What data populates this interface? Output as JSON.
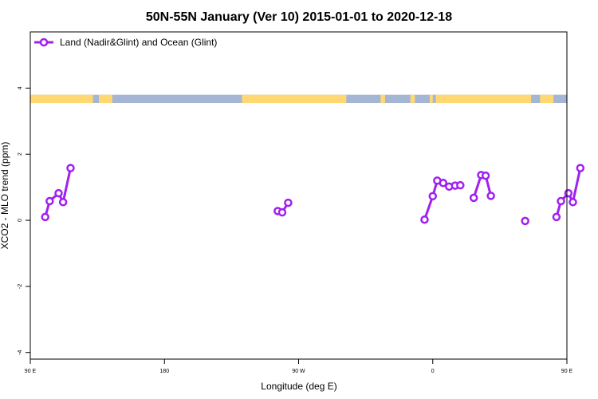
{
  "chart_data": {
    "type": "line",
    "title": "50N-55N January (Ver 10)   2015-01-01 to 2020-12-18",
    "xlabel": "Longitude (deg E)",
    "ylabel": "XCO2 - MLO trend (ppm)",
    "xlim": [
      90,
      450
    ],
    "ylim": [
      -4.2,
      5.7
    ],
    "x_ticks": [
      {
        "value": 90,
        "label": "90 E"
      },
      {
        "value": 180,
        "label": "180"
      },
      {
        "value": 270,
        "label": "90 W"
      },
      {
        "value": 360,
        "label": "0"
      },
      {
        "value": 450,
        "label": "90 E"
      },
      {
        "value": 540,
        "label": "180"
      }
    ],
    "y_ticks": [
      {
        "value": -4,
        "label": "-4"
      },
      {
        "value": -2,
        "label": "-2"
      },
      {
        "value": 0,
        "label": "0"
      },
      {
        "value": 2,
        "label": "2"
      },
      {
        "value": 4,
        "label": "4"
      }
    ],
    "legend": {
      "position": "top-left",
      "entries": [
        {
          "label": "Land (Nadir&Glint) and Ocean (Glint)",
          "color": "#a020f0"
        }
      ]
    },
    "series": [
      {
        "name": "Land (Nadir&Glint) and Ocean (Glint)",
        "color": "#a020f0",
        "segments": [
          [
            [
              100,
              0.1
            ],
            [
              103,
              0.58
            ],
            [
              109,
              0.82
            ],
            [
              112,
              0.55
            ],
            [
              117,
              1.58
            ]
          ],
          [
            [
              256,
              0.28
            ],
            [
              259,
              0.24
            ],
            [
              263,
              0.53
            ]
          ],
          [
            [
              354.5,
              0.02
            ],
            [
              360,
              0.73
            ],
            [
              363,
              1.2
            ],
            [
              367,
              1.13
            ],
            [
              371,
              1.02
            ],
            [
              375,
              1.05
            ],
            [
              378.5,
              1.06
            ]
          ],
          [
            [
              387.5,
              0.68
            ],
            [
              392.5,
              1.37
            ],
            [
              395.5,
              1.35
            ],
            [
              399,
              0.74
            ]
          ],
          [
            [
              422,
              -0.02
            ]
          ],
          [
            [
              443,
              0.1
            ],
            [
              446,
              0.58
            ],
            [
              451,
              0.82
            ],
            [
              454,
              0.55
            ],
            [
              459,
              1.58
            ]
          ]
        ]
      }
    ],
    "land_ocean_strip": {
      "y_range": [
        3.55,
        3.8
      ],
      "land_color": "#ffd874",
      "ocean_color": "#a5b5d4"
    },
    "grid": false
  }
}
